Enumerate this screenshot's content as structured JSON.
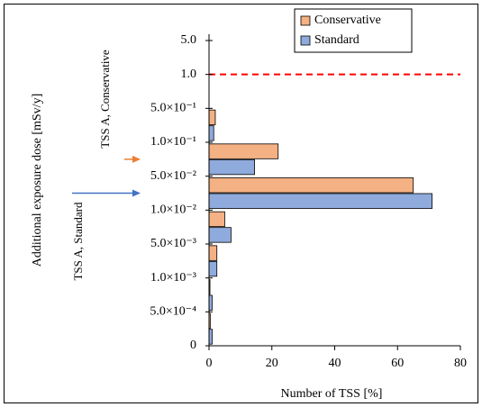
{
  "chart_data": {
    "type": "barh-histogram",
    "bins": [
      "0",
      "5.0×10⁻⁴",
      "1.0×10⁻³",
      "5.0×10⁻³",
      "1.0×10⁻²",
      "5.0×10⁻²",
      "1.0×10⁻¹",
      "5.0×10⁻¹",
      "1.0",
      "5.0"
    ],
    "series": [
      {
        "name": "Conservative",
        "color": "#f4b183",
        "values": [
          0.4,
          0.3,
          2.5,
          5,
          65,
          22,
          2,
          0,
          0
        ]
      },
      {
        "name": "Standard",
        "color": "#8faadc",
        "values": [
          1,
          1,
          2.5,
          7,
          71,
          14.5,
          1.5,
          0,
          0
        ]
      }
    ],
    "xlabel": "Number of TSS [%]",
    "ylabel": "Additional exposure dose [mSv/y]",
    "xlim": [
      0,
      80
    ],
    "xticks": [
      0,
      20,
      40,
      60,
      80
    ],
    "legend": "upper right",
    "reference_line": {
      "edge": 8,
      "color": "#ff0000",
      "dashed": true
    },
    "annotations": [
      {
        "text": "TSS A, Conservative",
        "bin": 5,
        "color": "#ed7d31"
      },
      {
        "text": "TSS A, Standard",
        "bin": 4,
        "color": "#4472c4"
      }
    ]
  }
}
